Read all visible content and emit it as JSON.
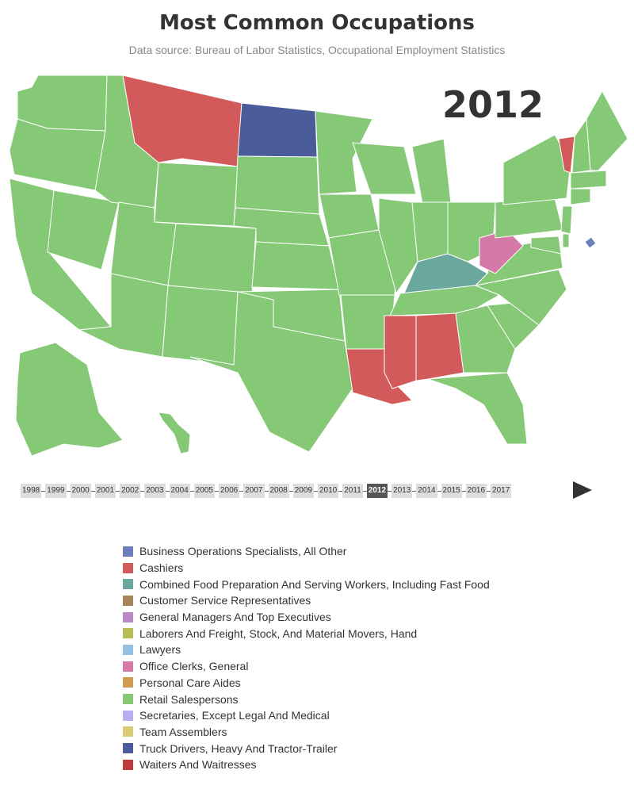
{
  "title": "Most Common Occupations",
  "subtitle": "Data source: Bureau of Labor Statistics, Occupational Employment Statistics",
  "current_year": "2012",
  "timeline": {
    "years": [
      "1998",
      "1999",
      "2000",
      "2001",
      "2002",
      "2003",
      "2004",
      "2005",
      "2006",
      "2007",
      "2008",
      "2009",
      "2010",
      "2011",
      "2012",
      "2013",
      "2014",
      "2015",
      "2016",
      "2017"
    ],
    "selected": "2012"
  },
  "play_icon": "play-icon",
  "legend": [
    {
      "label": "Business Operations Specialists, All Other",
      "color": "#6d7fbb"
    },
    {
      "label": "Cashiers",
      "color": "#d25a5a"
    },
    {
      "label": "Combined Food Preparation And Serving Workers, Including Fast Food",
      "color": "#6aa89e"
    },
    {
      "label": "Customer Service Representatives",
      "color": "#a88458"
    },
    {
      "label": "General Managers And Top Executives",
      "color": "#bb88c8"
    },
    {
      "label": "Laborers And Freight, Stock, And Material Movers, Hand",
      "color": "#b9bd58"
    },
    {
      "label": "Lawyers",
      "color": "#94bfe0"
    },
    {
      "label": "Office Clerks, General",
      "color": "#d57aa8"
    },
    {
      "label": "Personal Care Aides",
      "color": "#cf9b4f"
    },
    {
      "label": "Retail Salespersons",
      "color": "#85c875"
    },
    {
      "label": "Secretaries, Except Legal And Medical",
      "color": "#b9aeee"
    },
    {
      "label": "Team Assemblers",
      "color": "#dacb76"
    },
    {
      "label": "Truck Drivers, Heavy And Tractor-Trailer",
      "color": "#4b5c9a"
    },
    {
      "label": "Waiters And Waitresses",
      "color": "#bf3a3a"
    }
  ],
  "map_data": {
    "default_occupation": "Retail Salespersons",
    "states": {
      "MT": "Cashiers",
      "VT": "Cashiers",
      "LA": "Cashiers",
      "MS": "Cashiers",
      "AL": "Cashiers",
      "ND": "Truck Drivers, Heavy And Tractor-Trailer",
      "KY": "Combined Food Preparation And Serving Workers, Including Fast Food",
      "WV": "Office Clerks, General",
      "DC": "Business Operations Specialists, All Other"
    }
  }
}
